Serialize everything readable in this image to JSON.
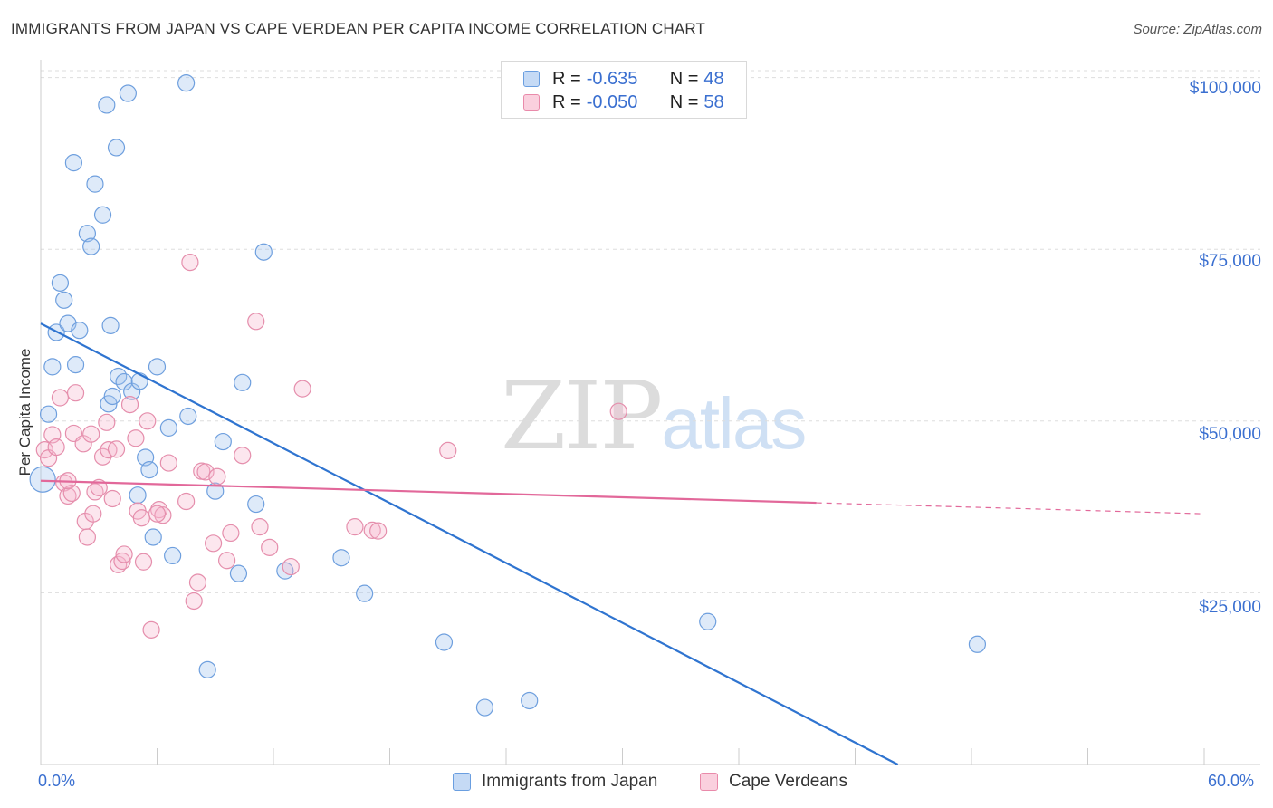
{
  "title": "IMMIGRANTS FROM JAPAN VS CAPE VERDEAN PER CAPITA INCOME CORRELATION CHART",
  "source": "Source: ZipAtlas.com",
  "watermark": {
    "zip": "ZIP",
    "atlas": "atlas"
  },
  "legend": {
    "rows": [
      {
        "r_label": "R =",
        "r_value": "-0.635",
        "n_label": "N =",
        "n_value": "48",
        "color": "#a9c8ef",
        "border": "#6a9ee0"
      },
      {
        "r_label": "R =",
        "r_value": "-0.050",
        "n_label": "N =",
        "n_value": "58",
        "color": "#f7bcd0",
        "border": "#e98aaa"
      }
    ]
  },
  "bottom_legend": {
    "japan": "Immigrants from Japan",
    "cape": "Cape Verdeans"
  },
  "colors": {
    "japan_fill": "rgba(160,196,238,0.35)",
    "japan_stroke": "#6e9fde",
    "japan_line": "#2f74d0",
    "cape_fill": "rgba(246,184,205,0.35)",
    "cape_stroke": "#e58eac",
    "cape_line": "#e2689a",
    "grid": "#dddddd",
    "tick_text": "#3a6fd0"
  },
  "chart_data": {
    "type": "scatter",
    "title": "IMMIGRANTS FROM JAPAN VS CAPE VERDEAN PER CAPITA INCOME CORRELATION CHART",
    "xlabel": "",
    "ylabel": "Per Capita Income",
    "xlim": [
      0,
      60
    ],
    "ylim": [
      0,
      101000
    ],
    "x_tick_labels": [
      "0.0%",
      "60.0%"
    ],
    "y_ticks": [
      25000,
      50000,
      75000,
      100000
    ],
    "y_tick_labels": [
      "$25,000",
      "$50,000",
      "$75,000",
      "$100,000"
    ],
    "grid": true,
    "legend_position": "top-center",
    "series": [
      {
        "name": "Immigrants from Japan",
        "R": -0.635,
        "N": 48,
        "trend": {
          "x0": 0,
          "y0": 64200,
          "x1": 44.2,
          "y1": 0,
          "dashed_to": null
        },
        "points": [
          [
            0.1,
            41500
          ],
          [
            0.4,
            51000
          ],
          [
            0.6,
            57900
          ],
          [
            0.8,
            62900
          ],
          [
            1.0,
            70100
          ],
          [
            1.2,
            67600
          ],
          [
            1.4,
            64200
          ],
          [
            1.8,
            58200
          ],
          [
            2.0,
            63200
          ],
          [
            1.7,
            87600
          ],
          [
            2.4,
            77300
          ],
          [
            2.6,
            75400
          ],
          [
            2.8,
            84500
          ],
          [
            3.2,
            80000
          ],
          [
            3.5,
            52500
          ],
          [
            3.6,
            63900
          ],
          [
            3.4,
            96000
          ],
          [
            3.9,
            89800
          ],
          [
            3.7,
            53600
          ],
          [
            4.0,
            56500
          ],
          [
            4.3,
            55700
          ],
          [
            4.7,
            54300
          ],
          [
            5.1,
            55800
          ],
          [
            5.4,
            44700
          ],
          [
            5.6,
            42900
          ],
          [
            5.8,
            33100
          ],
          [
            6.0,
            57900
          ],
          [
            5.0,
            39200
          ],
          [
            6.8,
            30400
          ],
          [
            7.6,
            50700
          ],
          [
            8.6,
            13800
          ],
          [
            9.0,
            39800
          ],
          [
            9.4,
            47000
          ],
          [
            10.2,
            27800
          ],
          [
            10.4,
            55600
          ],
          [
            11.5,
            74600
          ],
          [
            11.1,
            37900
          ],
          [
            12.6,
            28200
          ],
          [
            15.5,
            30100
          ],
          [
            16.7,
            24900
          ],
          [
            20.8,
            17800
          ],
          [
            22.9,
            8300
          ],
          [
            25.2,
            9300
          ],
          [
            34.4,
            20800
          ],
          [
            48.3,
            17500
          ],
          [
            7.5,
            99200
          ],
          [
            4.5,
            97700
          ],
          [
            6.6,
            49000
          ]
        ]
      },
      {
        "name": "Cape Verdeans",
        "R": -0.05,
        "N": 58,
        "trend": {
          "x0": 0,
          "y0": 41300,
          "x1": 40,
          "y1": 38100,
          "dashed_to": {
            "x": 60,
            "y": 36500
          }
        },
        "points": [
          [
            0.2,
            45800
          ],
          [
            0.4,
            44600
          ],
          [
            0.6,
            48000
          ],
          [
            0.8,
            46200
          ],
          [
            1.0,
            53400
          ],
          [
            1.2,
            41000
          ],
          [
            1.4,
            39100
          ],
          [
            1.6,
            39500
          ],
          [
            1.8,
            54100
          ],
          [
            1.7,
            48200
          ],
          [
            2.2,
            46700
          ],
          [
            2.3,
            35400
          ],
          [
            2.4,
            33100
          ],
          [
            2.6,
            48100
          ],
          [
            2.7,
            36500
          ],
          [
            2.8,
            39700
          ],
          [
            3.2,
            44800
          ],
          [
            3.4,
            49800
          ],
          [
            3.5,
            45800
          ],
          [
            3.7,
            38700
          ],
          [
            3.9,
            45900
          ],
          [
            4.0,
            29100
          ],
          [
            4.2,
            29600
          ],
          [
            4.3,
            30600
          ],
          [
            4.6,
            52400
          ],
          [
            4.9,
            47500
          ],
          [
            5.0,
            36900
          ],
          [
            5.2,
            35900
          ],
          [
            5.3,
            29500
          ],
          [
            5.5,
            50000
          ],
          [
            5.7,
            19600
          ],
          [
            6.1,
            37100
          ],
          [
            6.3,
            36300
          ],
          [
            6.6,
            43900
          ],
          [
            7.5,
            38300
          ],
          [
            7.7,
            73100
          ],
          [
            7.9,
            23800
          ],
          [
            8.1,
            26500
          ],
          [
            8.3,
            42700
          ],
          [
            8.5,
            42600
          ],
          [
            8.9,
            32200
          ],
          [
            9.1,
            41900
          ],
          [
            9.6,
            29700
          ],
          [
            9.8,
            33700
          ],
          [
            10.4,
            45000
          ],
          [
            11.1,
            64500
          ],
          [
            11.3,
            34600
          ],
          [
            11.8,
            31600
          ],
          [
            12.9,
            28800
          ],
          [
            13.5,
            54700
          ],
          [
            16.2,
            34600
          ],
          [
            17.1,
            34100
          ],
          [
            17.4,
            34000
          ],
          [
            21.0,
            45700
          ],
          [
            29.8,
            51400
          ],
          [
            1.4,
            41300
          ],
          [
            3.0,
            40300
          ],
          [
            6.0,
            36500
          ]
        ]
      }
    ]
  }
}
